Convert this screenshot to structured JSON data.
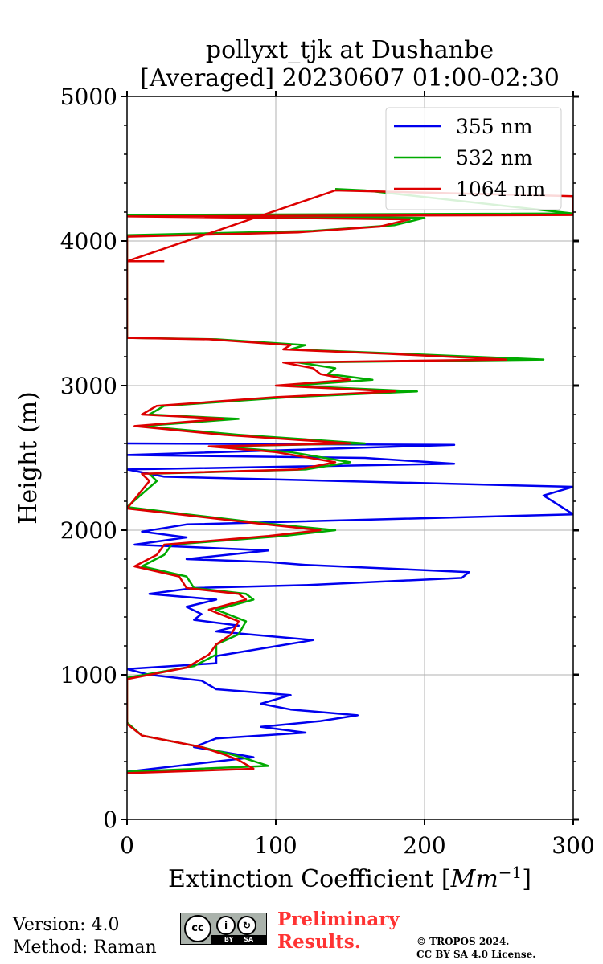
{
  "chart_data": {
    "type": "line",
    "title": "pollyxt_tjk at Dushanbe",
    "subtitle": "[Averaged] 20230607 01:00-02:30",
    "xlabel": "Extinction Coefficient [Mm⁻¹]",
    "xlabel_base": "Extinction Coefficient [",
    "xlabel_unit": "Mm",
    "xlabel_exp": "−1",
    "xlabel_end": "]",
    "ylabel": "Height (m)",
    "xlim": [
      0,
      300
    ],
    "ylim": [
      0,
      5000
    ],
    "xticks": [
      0,
      100,
      200,
      300
    ],
    "yticks": [
      0,
      1000,
      2000,
      3000,
      4000,
      5000
    ],
    "xtick_labels": [
      "0",
      "100",
      "200",
      "300"
    ],
    "ytick_labels": [
      "0",
      "1000",
      "2000",
      "3000",
      "4000",
      "5000"
    ],
    "grid": true,
    "legend_position": "top-right",
    "series": [
      {
        "name": "355 nm",
        "color": "#0000ee",
        "points": [
          [
            0,
            330
          ],
          [
            85,
            430
          ],
          [
            45,
            500
          ],
          [
            60,
            560
          ],
          [
            120,
            600
          ],
          [
            90,
            640
          ],
          [
            130,
            680
          ],
          [
            155,
            720
          ],
          [
            110,
            760
          ],
          [
            90,
            800
          ],
          [
            110,
            860
          ],
          [
            60,
            900
          ],
          [
            50,
            960
          ],
          [
            15,
            1000
          ],
          [
            0,
            1040
          ],
          [
            60,
            1080
          ],
          [
            60,
            1130
          ],
          [
            125,
            1240
          ],
          [
            60,
            1300
          ],
          [
            75,
            1340
          ],
          [
            45,
            1380
          ],
          [
            50,
            1420
          ],
          [
            40,
            1470
          ],
          [
            60,
            1520
          ],
          [
            15,
            1560
          ],
          [
            45,
            1600
          ],
          [
            120,
            1620
          ],
          [
            225,
            1670
          ],
          [
            230,
            1710
          ],
          [
            120,
            1760
          ],
          [
            95,
            1780
          ],
          [
            40,
            1800
          ],
          [
            95,
            1860
          ],
          [
            5,
            1900
          ],
          [
            40,
            1950
          ],
          [
            10,
            1990
          ],
          [
            40,
            2040
          ],
          [
            300,
            2110
          ],
          [
            280,
            2240
          ],
          [
            300,
            2300
          ],
          [
            25,
            2370
          ],
          [
            0,
            2420
          ],
          [
            220,
            2460
          ],
          [
            160,
            2500
          ],
          [
            0,
            2520
          ],
          [
            220,
            2590
          ],
          [
            0,
            2600
          ]
        ]
      },
      {
        "name": "532 nm",
        "color": "#00aa00",
        "points": [
          [
            0,
            330
          ],
          [
            95,
            370
          ],
          [
            80,
            420
          ],
          [
            70,
            450
          ],
          [
            50,
            500
          ],
          [
            10,
            580
          ],
          [
            0,
            670
          ],
          [
            0,
            980
          ],
          [
            45,
            1060
          ],
          [
            60,
            1140
          ],
          [
            60,
            1210
          ],
          [
            75,
            1280
          ],
          [
            80,
            1370
          ],
          [
            60,
            1450
          ],
          [
            85,
            1520
          ],
          [
            80,
            1560
          ],
          [
            45,
            1600
          ],
          [
            40,
            1680
          ],
          [
            10,
            1750
          ],
          [
            25,
            1830
          ],
          [
            30,
            1900
          ],
          [
            105,
            1960
          ],
          [
            140,
            2000
          ],
          [
            90,
            2050
          ],
          [
            40,
            2110
          ],
          [
            0,
            2160
          ],
          [
            20,
            2340
          ],
          [
            15,
            2390
          ],
          [
            120,
            2420
          ],
          [
            150,
            2470
          ],
          [
            110,
            2540
          ],
          [
            60,
            2580
          ],
          [
            160,
            2600
          ],
          [
            75,
            2660
          ],
          [
            10,
            2720
          ],
          [
            75,
            2770
          ],
          [
            15,
            2800
          ],
          [
            25,
            2860
          ],
          [
            110,
            2920
          ],
          [
            195,
            2960
          ],
          [
            110,
            3000
          ],
          [
            165,
            3040
          ],
          [
            135,
            3080
          ],
          [
            140,
            3120
          ],
          [
            115,
            3160
          ],
          [
            280,
            3180
          ],
          [
            185,
            3220
          ],
          [
            110,
            3250
          ],
          [
            120,
            3280
          ],
          [
            60,
            3320
          ],
          [
            0,
            3330
          ],
          [
            0,
            4040
          ],
          [
            125,
            4070
          ],
          [
            180,
            4110
          ],
          [
            200,
            4160
          ],
          [
            0,
            4180
          ],
          [
            300,
            4190
          ],
          [
            160,
            4350
          ],
          [
            140,
            4360
          ]
        ]
      },
      {
        "name": "1064 nm",
        "color": "#dd0000",
        "points": [
          [
            0,
            320
          ],
          [
            85,
            350
          ],
          [
            75,
            410
          ],
          [
            65,
            450
          ],
          [
            50,
            500
          ],
          [
            10,
            580
          ],
          [
            0,
            660
          ],
          [
            0,
            970
          ],
          [
            40,
            1050
          ],
          [
            55,
            1140
          ],
          [
            60,
            1210
          ],
          [
            70,
            1280
          ],
          [
            75,
            1370
          ],
          [
            55,
            1450
          ],
          [
            80,
            1520
          ],
          [
            75,
            1560
          ],
          [
            40,
            1600
          ],
          [
            35,
            1680
          ],
          [
            5,
            1750
          ],
          [
            20,
            1830
          ],
          [
            25,
            1900
          ],
          [
            95,
            1960
          ],
          [
            130,
            2000
          ],
          [
            85,
            2050
          ],
          [
            35,
            2110
          ],
          [
            0,
            2150
          ],
          [
            15,
            2340
          ],
          [
            10,
            2390
          ],
          [
            115,
            2420
          ],
          [
            140,
            2470
          ],
          [
            100,
            2540
          ],
          [
            55,
            2580
          ],
          [
            150,
            2600
          ],
          [
            65,
            2660
          ],
          [
            5,
            2720
          ],
          [
            65,
            2770
          ],
          [
            10,
            2800
          ],
          [
            20,
            2860
          ],
          [
            100,
            2920
          ],
          [
            180,
            2960
          ],
          [
            100,
            3000
          ],
          [
            150,
            3040
          ],
          [
            130,
            3080
          ],
          [
            125,
            3120
          ],
          [
            105,
            3160
          ],
          [
            255,
            3180
          ],
          [
            175,
            3220
          ],
          [
            105,
            3250
          ],
          [
            110,
            3280
          ],
          [
            55,
            3320
          ],
          [
            0,
            3330
          ],
          [
            0,
            4030
          ],
          [
            115,
            4060
          ],
          [
            170,
            4100
          ],
          [
            190,
            4150
          ],
          [
            0,
            4170
          ],
          [
            300,
            4180
          ],
          [
            300,
            4310
          ],
          [
            140,
            4350
          ],
          [
            0,
            3860
          ],
          [
            25,
            3860
          ]
        ]
      }
    ]
  },
  "footer": {
    "version": "Version: 4.0",
    "method": "Method: Raman",
    "preliminary_line1": "Preliminary",
    "preliminary_line2": "Results.",
    "copyright_line1": "© TROPOS 2024.",
    "copyright_line2": "CC BY SA 4.0 License.",
    "license_badge_strip": "BY SA"
  }
}
